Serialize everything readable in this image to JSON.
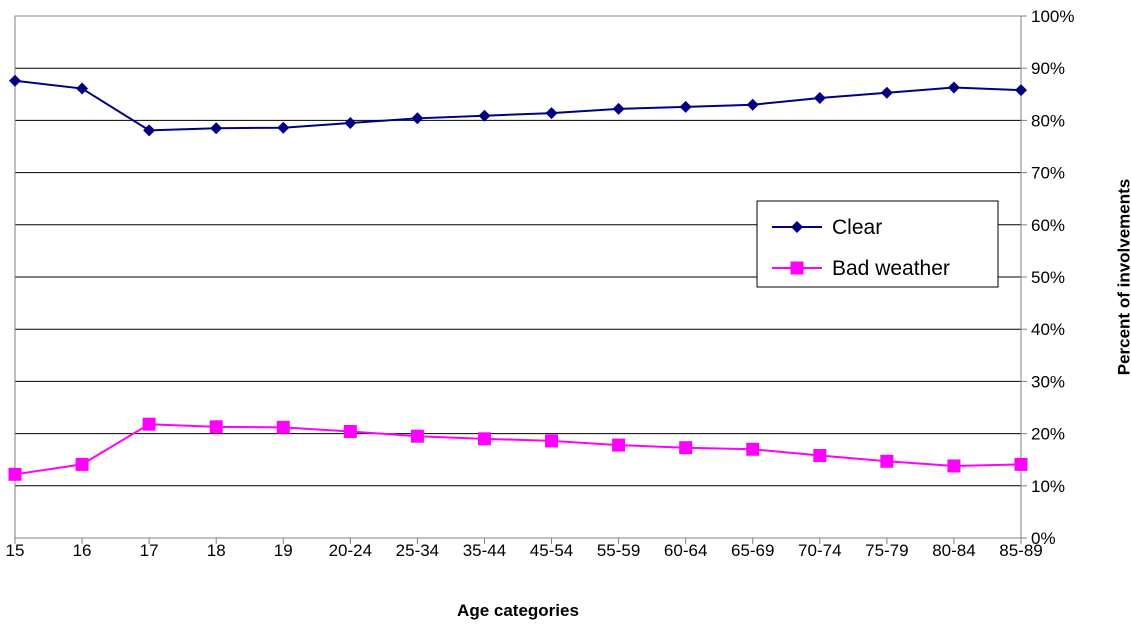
{
  "chart_data": {
    "type": "line",
    "xlabel": "Age categories",
    "ylabel": "Percent of involvements",
    "categories": [
      "15",
      "16",
      "17",
      "18",
      "19",
      "20-24",
      "25-34",
      "35-44",
      "45-54",
      "55-59",
      "60-64",
      "65-69",
      "70-74",
      "75-79",
      "80-84",
      "85-89"
    ],
    "y_ticks": [
      "0%",
      "10%",
      "20%",
      "30%",
      "40%",
      "50%",
      "60%",
      "70%",
      "80%",
      "90%",
      "100%"
    ],
    "ylim": [
      0,
      100
    ],
    "y_axis_side": "right",
    "grid": "horizontal",
    "legend_position": "right-middle",
    "series": [
      {
        "name": "Clear",
        "color": "#000080",
        "marker": "diamond",
        "values": [
          87.6,
          86.1,
          78.1,
          78.5,
          78.6,
          79.5,
          80.4,
          80.9,
          81.4,
          82.2,
          82.6,
          83.0,
          84.3,
          85.3,
          86.3,
          85.8
        ]
      },
      {
        "name": "Bad weather",
        "color": "#FF00FF",
        "marker": "square",
        "values": [
          12.2,
          14.1,
          21.8,
          21.3,
          21.2,
          20.4,
          19.5,
          19.0,
          18.6,
          17.8,
          17.3,
          17.0,
          15.8,
          14.7,
          13.8,
          14.1
        ]
      }
    ]
  }
}
